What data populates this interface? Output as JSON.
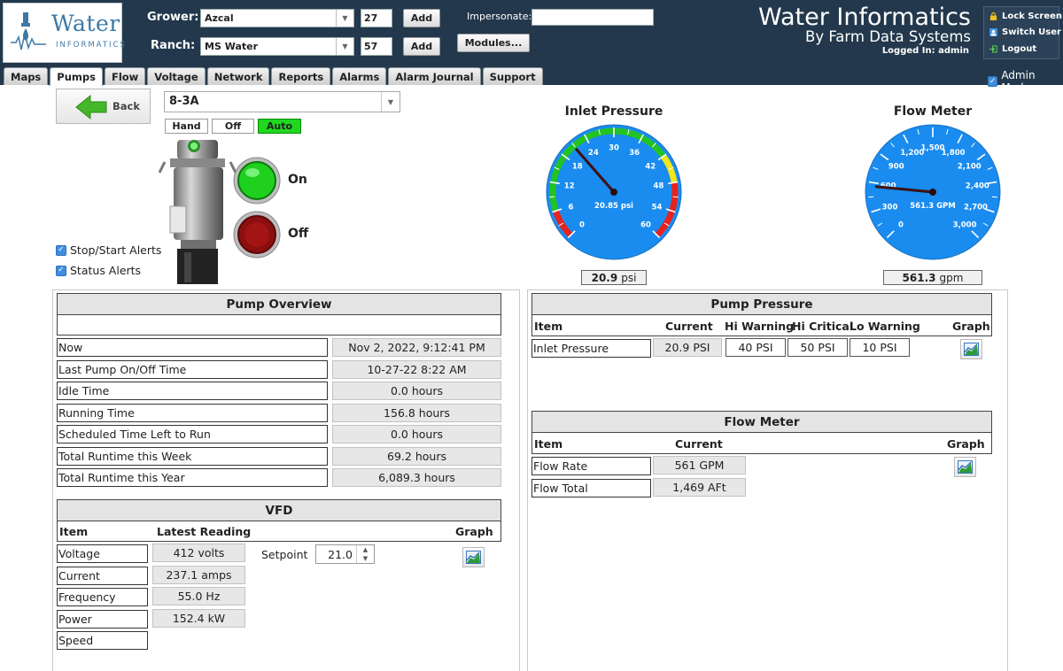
{
  "logo": {
    "word": "Water",
    "sub": "INFORMATICS"
  },
  "header": {
    "grower_label": "Grower:",
    "grower_value": "Azcal",
    "grower_num": "27",
    "ranch_label": "Ranch:",
    "ranch_value": "MS Water",
    "ranch_num": "57",
    "add_label": "Add",
    "impersonate_label": "Impersonate:",
    "impersonate_value": "",
    "modules_label": "Modules...",
    "brand_title": "Water Informatics",
    "brand_sub": "By Farm Data Systems",
    "logged_in": "Logged In: admin",
    "lock_screen": "Lock Screen",
    "switch_user": "Switch User",
    "logout": "Logout",
    "admin_mode": "Admin Mode"
  },
  "tabs": [
    "Maps",
    "Pumps",
    "Flow",
    "Voltage",
    "Network",
    "Reports",
    "Alarms",
    "Alarm Journal",
    "Support"
  ],
  "active_tab": "Pumps",
  "pump": {
    "back_label": "Back",
    "selected": "8-3A",
    "hand": "Hand",
    "off": "Off",
    "auto": "Auto",
    "on_label": "On",
    "off_label": "Off",
    "stop_start_alerts": "Stop/Start Alerts",
    "status_alerts": "Status Alerts"
  },
  "gauges": {
    "inlet": {
      "title": "Inlet Pressure",
      "ticks": [
        "0",
        "6",
        "12",
        "18",
        "24",
        "30",
        "36",
        "42",
        "48",
        "54",
        "60"
      ],
      "center_text": "20.85 psi",
      "value": 20.85,
      "min": 0,
      "max": 60,
      "reading": "20.9",
      "unit": "psi",
      "zones": {
        "red_low_end": 6,
        "green_start": 6,
        "green_end": 42,
        "yellow_start": 42,
        "yellow_end": 48,
        "red_start": 48
      }
    },
    "flow": {
      "title": "Flow Meter",
      "ticks": [
        "0",
        "300",
        "600",
        "900",
        "1,200",
        "1,500",
        "1,800",
        "2,100",
        "2,400",
        "2,700",
        "3,000"
      ],
      "center_text": "561.3 GPM",
      "value": 561.3,
      "min": 0,
      "max": 3000,
      "reading": "561.3",
      "unit": "gpm"
    }
  },
  "overview": {
    "title": "Pump Overview",
    "rows": [
      {
        "label": "Now",
        "value": "Nov 2, 2022, 9:12:41 PM"
      },
      {
        "label": "Last Pump On/Off Time",
        "value": "10-27-22 8:22 AM"
      },
      {
        "label": "Idle Time",
        "value": "0.0 hours"
      },
      {
        "label": "Running Time",
        "value": "156.8 hours"
      },
      {
        "label": "Scheduled Time Left to Run",
        "value": "0.0 hours"
      },
      {
        "label": "Total Runtime this Week",
        "value": "69.2 hours"
      },
      {
        "label": "Total Runtime this Year",
        "value": "6,089.3 hours"
      }
    ]
  },
  "vfd": {
    "title": "VFD",
    "col_item": "Item",
    "col_latest": "Latest Reading",
    "col_graph": "Graph",
    "setpoint_label": "Setpoint",
    "setpoint_value": "21.0",
    "rows": [
      {
        "label": "Voltage",
        "value": "412 volts"
      },
      {
        "label": "Current",
        "value": "237.1 amps"
      },
      {
        "label": "Frequency",
        "value": "55.0 Hz"
      },
      {
        "label": "Power",
        "value": "152.4 kW"
      },
      {
        "label": "Speed",
        "value": ""
      }
    ]
  },
  "pump_pressure": {
    "title": "Pump Pressure",
    "col_item": "Item",
    "col_current": "Current",
    "col_hi_warning": "Hi Warning",
    "col_hi_critical": "Hi Critical",
    "col_lo_warning": "Lo Warning",
    "col_graph": "Graph",
    "row": {
      "label": "Inlet Pressure",
      "current": "20.9 PSI",
      "hi_warning": "40 PSI",
      "hi_critical": "50 PSI",
      "lo_warning": "10 PSI"
    }
  },
  "flow_meter": {
    "title": "Flow Meter",
    "col_item": "Item",
    "col_current": "Current",
    "col_graph": "Graph",
    "rows": [
      {
        "label": "Flow Rate",
        "value": "561 GPM"
      },
      {
        "label": "Flow Total",
        "value": "1,469 AFt"
      }
    ]
  },
  "colors": {
    "header_bg": "#23384c",
    "gauge_face": "#1a8cf0",
    "gauge_green": "#22c322",
    "gauge_yellow": "#f2e61a",
    "gauge_red": "#e5231f",
    "auto_green": "#1fd81f"
  }
}
